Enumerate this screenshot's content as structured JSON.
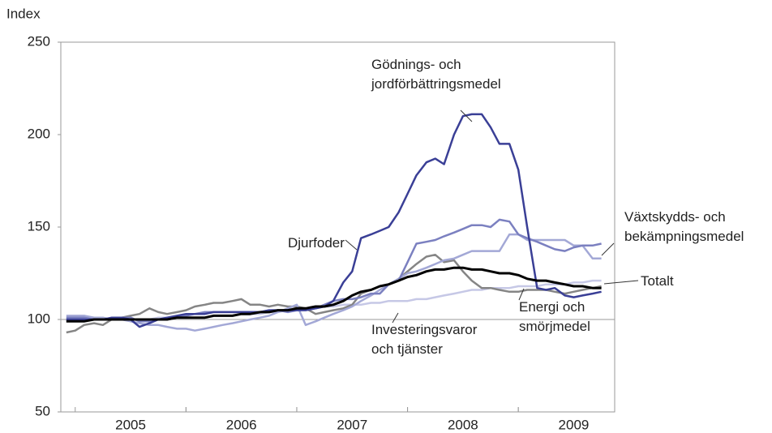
{
  "chart_data": {
    "type": "line",
    "y_axis_label": "Index",
    "x": [
      2004.92,
      2005.0,
      2005.08,
      2005.17,
      2005.25,
      2005.33,
      2005.42,
      2005.5,
      2005.58,
      2005.67,
      2005.75,
      2005.83,
      2005.92,
      2006.0,
      2006.08,
      2006.17,
      2006.25,
      2006.33,
      2006.42,
      2006.5,
      2006.58,
      2006.67,
      2006.75,
      2006.83,
      2006.92,
      2007.0,
      2007.08,
      2007.17,
      2007.25,
      2007.33,
      2007.42,
      2007.5,
      2007.58,
      2007.67,
      2007.75,
      2007.83,
      2007.92,
      2008.0,
      2008.08,
      2008.17,
      2008.25,
      2008.33,
      2008.42,
      2008.5,
      2008.58,
      2008.67,
      2008.75,
      2008.83,
      2008.92,
      2009.0,
      2009.08,
      2009.17,
      2009.25,
      2009.33,
      2009.42,
      2009.5,
      2009.58,
      2009.67,
      2009.75
    ],
    "series": [
      {
        "name": "Investeringsvaror och tjänster",
        "color": "#c6c8e6",
        "values": [
          100,
          100,
          100,
          100,
          100,
          100,
          100,
          100,
          100,
          100,
          101,
          101,
          101,
          101,
          101,
          101,
          102,
          102,
          102,
          103,
          103,
          103,
          104,
          104,
          105,
          105,
          106,
          106,
          107,
          107,
          108,
          108,
          108,
          109,
          109,
          110,
          110,
          110,
          111,
          111,
          112,
          113,
          114,
          115,
          116,
          116,
          117,
          117,
          117,
          118,
          118,
          118,
          119,
          119,
          119,
          120,
          120,
          121,
          121
        ]
      },
      {
        "name": "Energi och smörjmedel",
        "color": "#858585",
        "values": [
          93,
          94,
          97,
          98,
          97,
          100,
          101,
          102,
          103,
          106,
          104,
          103,
          104,
          105,
          107,
          108,
          109,
          109,
          110,
          111,
          108,
          108,
          107,
          108,
          107,
          107,
          106,
          103,
          104,
          105,
          106,
          108,
          114,
          116,
          118,
          119,
          122,
          126,
          130,
          134,
          135,
          131,
          132,
          126,
          121,
          117,
          117,
          116,
          115,
          115,
          116,
          116,
          116,
          115,
          114,
          115,
          116,
          117,
          118
        ]
      },
      {
        "name": "Växtskydds- och bekämpningsmedel",
        "color": "#a3a8d6",
        "values": [
          102,
          102,
          102,
          101,
          101,
          100,
          100,
          99,
          98,
          97,
          97,
          96,
          95,
          95,
          94,
          95,
          96,
          97,
          98,
          99,
          100,
          101,
          102,
          104,
          106,
          108,
          97,
          99,
          101,
          103,
          105,
          107,
          110,
          113,
          116,
          119,
          122,
          125,
          126,
          128,
          130,
          132,
          133,
          135,
          137,
          137,
          137,
          137,
          146,
          146,
          143,
          143,
          143,
          143,
          143,
          140,
          140,
          133,
          133
        ]
      },
      {
        "name": "Djurfoder",
        "color": "#7b80c0",
        "values": [
          101,
          101,
          101,
          100,
          100,
          100,
          101,
          101,
          99,
          99,
          100,
          100,
          101,
          102,
          103,
          104,
          104,
          104,
          104,
          104,
          104,
          104,
          105,
          105,
          104,
          105,
          106,
          106,
          108,
          110,
          111,
          111,
          112,
          114,
          114,
          119,
          121,
          131,
          141,
          142,
          143,
          145,
          147,
          149,
          151,
          151,
          150,
          154,
          153,
          146,
          144,
          142,
          140,
          138,
          137,
          139,
          140,
          140,
          141
        ]
      },
      {
        "name": "Gödnings- och jordförbättringsmedel",
        "color": "#3a3f96",
        "values": [
          100,
          100,
          100,
          100,
          100,
          101,
          101,
          100,
          96,
          98,
          100,
          101,
          102,
          103,
          103,
          103,
          104,
          104,
          104,
          104,
          104,
          104,
          105,
          105,
          105,
          105,
          105,
          106,
          107,
          110,
          120,
          126,
          144,
          146,
          148,
          150,
          158,
          168,
          178,
          185,
          187,
          184,
          200,
          210,
          211,
          211,
          204,
          195,
          195,
          181,
          150,
          117,
          116,
          117,
          113,
          112,
          113,
          114,
          115
        ]
      },
      {
        "name": "Totalt",
        "color": "#000000",
        "values": [
          99,
          99,
          99,
          100,
          100,
          100,
          100,
          100,
          100,
          100,
          100,
          100,
          101,
          101,
          101,
          101,
          102,
          102,
          102,
          103,
          103,
          104,
          104,
          105,
          105,
          106,
          106,
          107,
          107,
          108,
          110,
          113,
          115,
          116,
          118,
          119,
          121,
          123,
          124,
          126,
          127,
          127,
          128,
          128,
          127,
          127,
          126,
          125,
          125,
          124,
          122,
          121,
          121,
          120,
          119,
          118,
          118,
          117,
          117
        ]
      }
    ],
    "xlim": [
      2004.87,
      2009.87
    ],
    "xticks": [
      {
        "value": 2005.5,
        "label": "2005"
      },
      {
        "value": 2006.5,
        "label": "2006"
      },
      {
        "value": 2007.5,
        "label": "2007"
      },
      {
        "value": 2008.5,
        "label": "2008"
      },
      {
        "value": 2009.5,
        "label": "2009"
      }
    ],
    "ylim": [
      50,
      250
    ],
    "yticks": [
      50,
      100,
      150,
      200,
      250
    ],
    "reference_line": 100
  }
}
